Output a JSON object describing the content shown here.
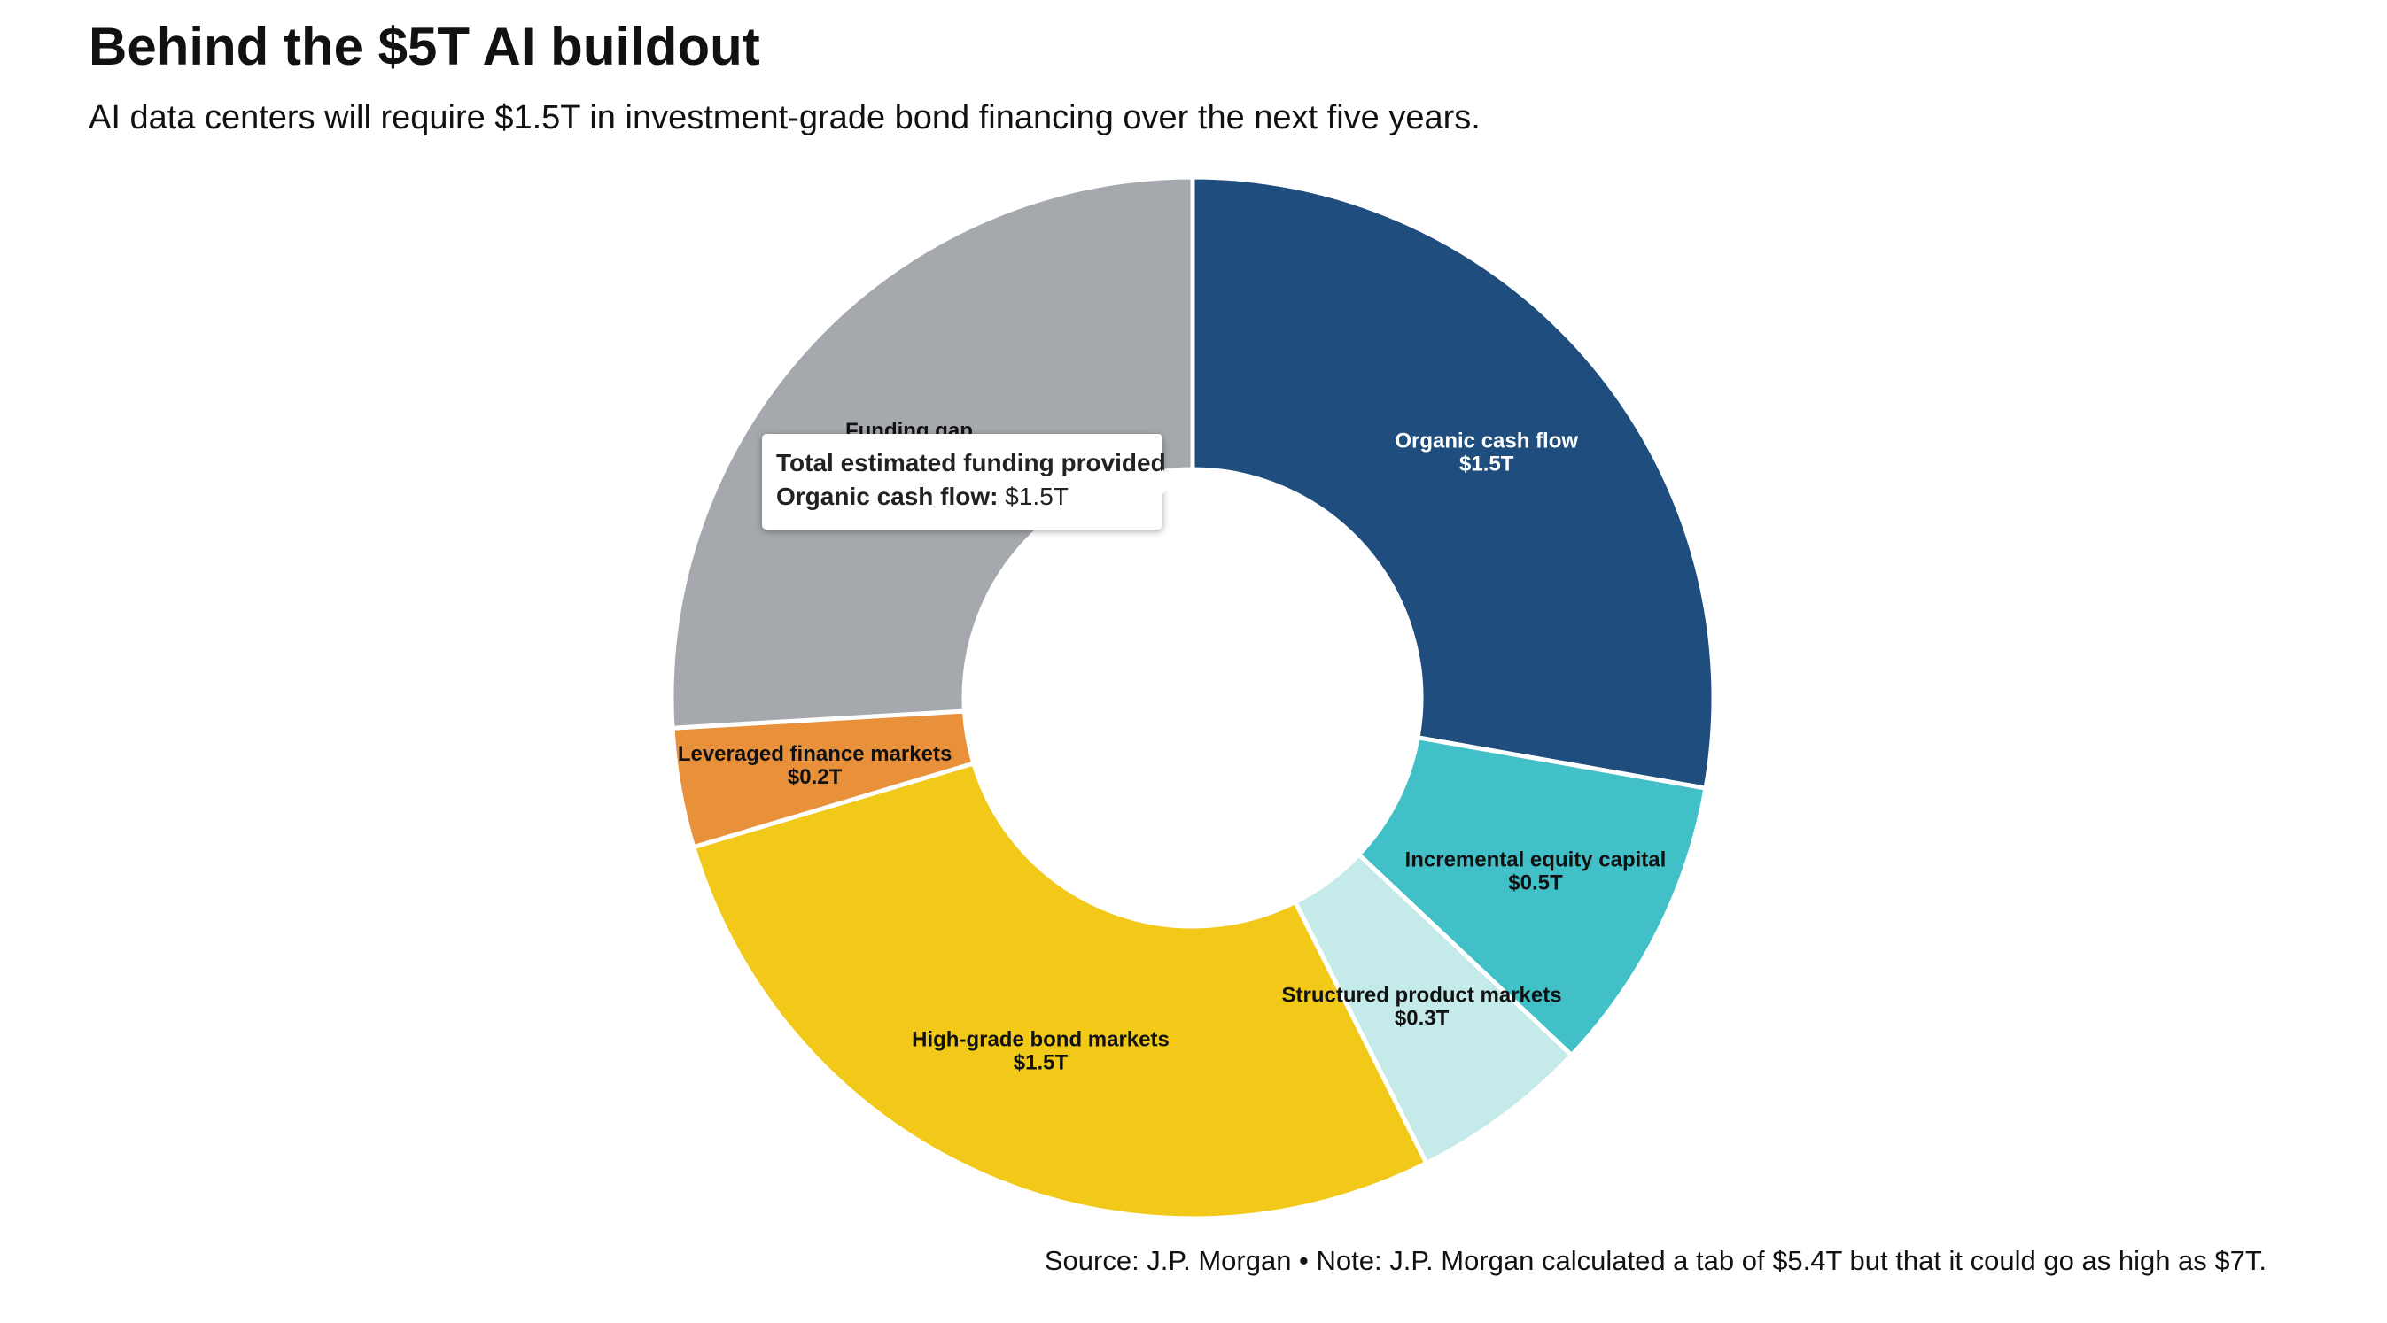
{
  "header": {
    "title": "Behind the $5T AI buildout",
    "subtitle": "AI data centers will require $1.5T in investment-grade bond financing over the next five years."
  },
  "footer": {
    "source": "Source: J.P. Morgan • Note: J.P. Morgan calculated a tab of $5.4T but that it could go as high as $7T."
  },
  "tooltip": {
    "title": "Total estimated funding provided",
    "key": "Organic cash flow:",
    "value": "$1.5T"
  },
  "chart_data": {
    "type": "pie",
    "variant": "donut",
    "title": "Behind the $5T AI buildout",
    "unit": "$T",
    "slices": [
      {
        "name": "Organic cash flow",
        "value": 1.5,
        "label": "$1.5T",
        "color": "#1f4e7e",
        "label_color": "#ffffff"
      },
      {
        "name": "Incremental equity capital",
        "value": 0.5,
        "label": "$0.5T",
        "color": "#42c0c8",
        "label_color": "#111111"
      },
      {
        "name": "Structured product markets",
        "value": 0.3,
        "label": "$0.3T",
        "color": "#c4eaea",
        "label_color": "#111111"
      },
      {
        "name": "High-grade bond markets",
        "value": 1.5,
        "label": "$1.5T",
        "color": "#f2c918",
        "label_color": "#111111"
      },
      {
        "name": "Leveraged finance markets",
        "value": 0.2,
        "label": "$0.2T",
        "color": "#e8903a",
        "label_color": "#111111"
      },
      {
        "name": "Funding gap",
        "value": 1.4,
        "label": "",
        "color": "#a5a8ad",
        "label_color": "#111111"
      }
    ]
  }
}
